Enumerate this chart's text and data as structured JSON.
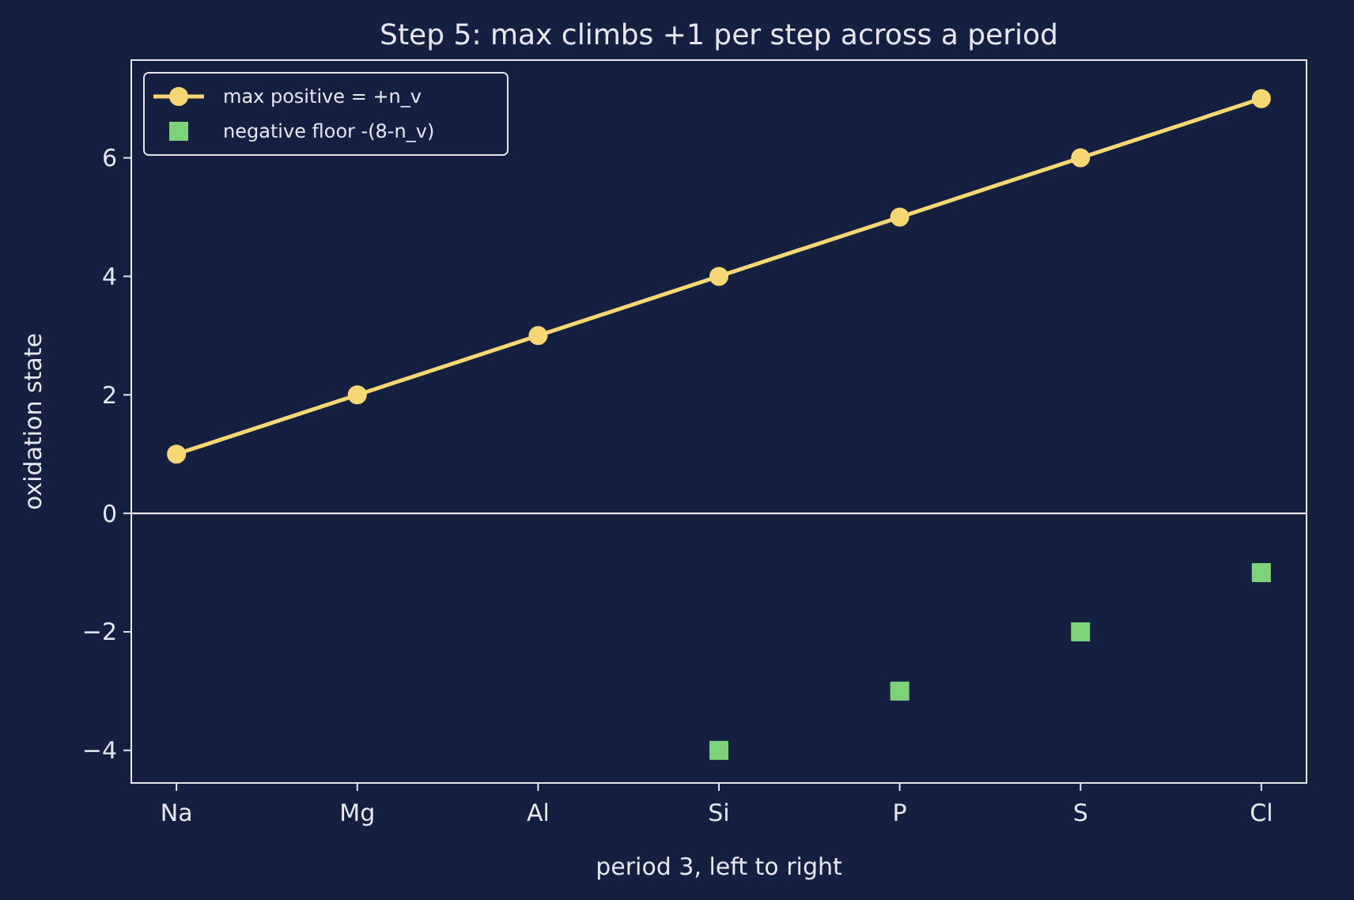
{
  "chart_data": {
    "type": "line",
    "title": "Step 5: max climbs +1 per step across a period",
    "xlabel": "period 3, left to right",
    "ylabel": "oxidation state",
    "categories": [
      "Na",
      "Mg",
      "Al",
      "Si",
      "P",
      "S",
      "Cl"
    ],
    "series": [
      {
        "name": "max positive = +n_v",
        "color": "#f7d774",
        "marker": "circle",
        "values": [
          1,
          2,
          3,
          4,
          5,
          6,
          7
        ]
      },
      {
        "name": "negative floor -(8-n_v)",
        "color": "#7ed37a",
        "type": "scatter",
        "marker": "square",
        "values": [
          null,
          null,
          null,
          -4,
          -3,
          -2,
          -1
        ]
      }
    ],
    "ylim": [
      -4.55,
      7.65
    ],
    "yticks": [
      {
        "value": -4,
        "label": "−4"
      },
      {
        "value": -2,
        "label": "−2"
      },
      0,
      2,
      4,
      6
    ],
    "ref_lines": [
      {
        "axis": "y",
        "value": 0,
        "color": "#e6e8ee"
      }
    ],
    "grid": false,
    "legend": "top left"
  }
}
